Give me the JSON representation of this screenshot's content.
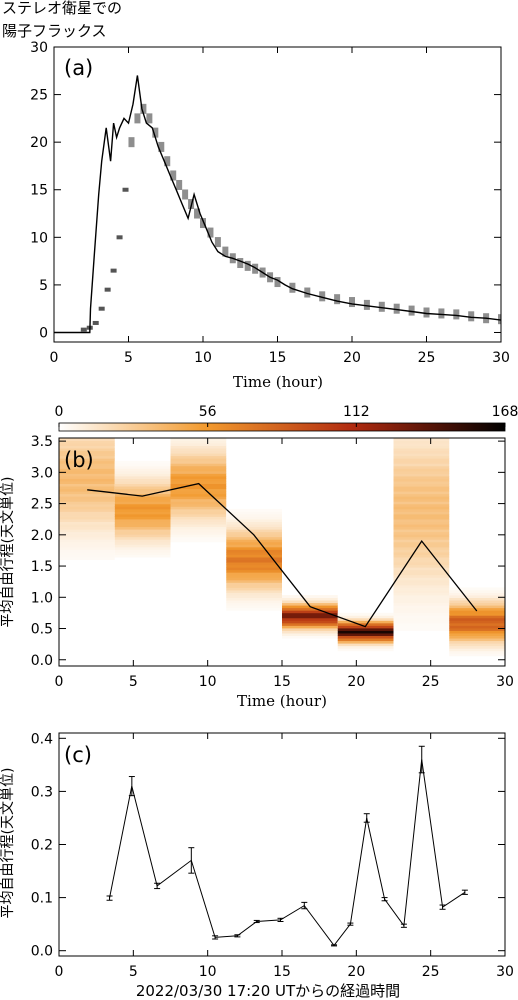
{
  "figure_title": [
    "ステレオ衛星での",
    "陽子フラックス"
  ],
  "chart_data": [
    {
      "panel_label": "(a)",
      "type": "line",
      "xlabel": "Time (hour)",
      "ylabel": "",
      "xlim": [
        0,
        30
      ],
      "ylim": [
        -1,
        30
      ],
      "xticks": [
        0,
        5,
        10,
        15,
        20,
        25,
        30
      ],
      "yticks": [
        0,
        5,
        10,
        15,
        20,
        25,
        30
      ],
      "series": [
        {
          "style": "solid-black",
          "x": [
            0,
            2.4,
            2.45,
            2.7,
            3.0,
            3.2,
            3.5,
            3.8,
            4.0,
            4.2,
            4.4,
            4.7,
            5.0,
            5.3,
            5.6,
            5.9,
            6.2,
            6.6,
            7.0,
            7.4,
            7.8,
            8.2,
            8.6,
            9.0,
            9.4,
            9.8,
            10.2,
            10.6,
            11.0,
            11.5,
            12.0,
            12.5,
            13.0,
            13.5,
            14.0,
            14.5,
            15.0,
            15.5,
            16.0,
            17.0,
            18.0,
            19.0,
            20.0,
            21.0,
            22.0,
            23.0,
            24.0,
            25.0,
            26.0,
            27.0,
            28.0,
            29.0,
            30.0
          ],
          "y": [
            0,
            0,
            2.5,
            8.0,
            14.5,
            18.0,
            21.5,
            18.0,
            22.0,
            20.5,
            21.5,
            22.5,
            22.0,
            24.0,
            27.0,
            23.5,
            22.0,
            21.5,
            19.5,
            18.0,
            16.5,
            15.0,
            13.5,
            12.0,
            14.5,
            12.5,
            11.0,
            9.5,
            8.5,
            8.0,
            7.8,
            7.5,
            7.2,
            6.8,
            6.3,
            5.8,
            5.5,
            5.0,
            4.6,
            4.1,
            3.7,
            3.3,
            3.0,
            2.8,
            2.6,
            2.4,
            2.2,
            2.0,
            1.9,
            1.8,
            1.6,
            1.5,
            1.3
          ]
        },
        {
          "style": "gray-band",
          "x": [
            2.0,
            2.4,
            2.8,
            3.2,
            3.6,
            4.0,
            4.4,
            4.8,
            5.2,
            5.6,
            6.0,
            6.4,
            6.8,
            7.2,
            7.6,
            8.0,
            8.4,
            8.8,
            9.2,
            9.6,
            10.0,
            10.5,
            11.0,
            11.5,
            12.0,
            12.5,
            13.0,
            13.5,
            14.0,
            14.5,
            15.0,
            16.0,
            17.0,
            18.0,
            19.0,
            20.0,
            21.0,
            22.0,
            23.0,
            24.0,
            25.0,
            26.0,
            27.0,
            28.0,
            29.0,
            30.0
          ],
          "y": [
            0.3,
            0.5,
            1.0,
            2.5,
            4.5,
            6.5,
            10.0,
            15.0,
            20.0,
            22.5,
            23.5,
            22.5,
            21.0,
            19.5,
            18.0,
            16.5,
            15.5,
            14.5,
            13.5,
            12.5,
            11.5,
            10.5,
            9.5,
            8.5,
            7.8,
            7.3,
            7.0,
            6.7,
            6.3,
            5.8,
            5.3,
            4.7,
            4.2,
            3.8,
            3.5,
            3.2,
            2.9,
            2.7,
            2.5,
            2.3,
            2.1,
            2.0,
            1.9,
            1.7,
            1.5,
            1.4
          ]
        }
      ]
    },
    {
      "panel_label": "(b)",
      "type": "heatmap",
      "xlabel": "Time (hour)",
      "ylabel": "平均自由行程(天文単位)",
      "xlim": [
        0,
        30
      ],
      "ylim": [
        -0.1,
        3.55
      ],
      "xticks": [
        0,
        5,
        10,
        15,
        20,
        25,
        30
      ],
      "yticks": [
        0.0,
        0.5,
        1.0,
        1.5,
        2.0,
        2.5,
        3.0,
        3.5
      ],
      "colorbar": {
        "min": 0,
        "max": 168,
        "ticks": [
          0,
          56,
          112,
          168
        ]
      },
      "columns": [
        {
          "x0": 0.0,
          "x1": 3.75,
          "center": 2.9,
          "spread": 0.55,
          "peak": 40
        },
        {
          "x0": 3.75,
          "x1": 7.5,
          "center": 2.4,
          "spread": 0.3,
          "peak": 60
        },
        {
          "x0": 7.5,
          "x1": 11.25,
          "center": 2.8,
          "spread": 0.35,
          "peak": 60
        },
        {
          "x0": 11.25,
          "x1": 15.0,
          "center": 1.6,
          "spread": 0.3,
          "peak": 75
        },
        {
          "x0": 15.0,
          "x1": 18.75,
          "center": 0.7,
          "spread": 0.12,
          "peak": 135
        },
        {
          "x0": 18.75,
          "x1": 22.5,
          "center": 0.45,
          "spread": 0.1,
          "peak": 160
        },
        {
          "x0": 22.5,
          "x1": 26.25,
          "center": 2.4,
          "spread": 0.8,
          "peak": 38
        },
        {
          "x0": 26.25,
          "x1": 30.0,
          "center": 0.6,
          "spread": 0.2,
          "peak": 90
        }
      ],
      "line": {
        "x": [
          1.9,
          5.6,
          9.4,
          13.1,
          16.9,
          20.6,
          24.4,
          28.1
        ],
        "y": [
          2.72,
          2.62,
          2.82,
          2.0,
          0.85,
          0.53,
          1.9,
          0.78
        ]
      }
    },
    {
      "panel_label": "(c)",
      "type": "line",
      "xlabel": "2022/03/30 17:20 UTからの経過時間",
      "ylabel": "平均自由行程(天文単位)",
      "xlim": [
        0,
        30
      ],
      "ylim": [
        -0.01,
        0.41
      ],
      "xticks": [
        0,
        5,
        10,
        15,
        20,
        25,
        30
      ],
      "yticks": [
        0.0,
        0.1,
        0.2,
        0.3,
        0.4
      ],
      "x": [
        3.4,
        4.9,
        6.6,
        8.9,
        10.5,
        12.0,
        13.3,
        14.9,
        16.5,
        18.5,
        19.6,
        20.7,
        21.9,
        23.2,
        24.4,
        25.8,
        27.3
      ],
      "values": [
        0.099,
        0.31,
        0.122,
        0.17,
        0.025,
        0.028,
        0.055,
        0.058,
        0.085,
        0.01,
        0.05,
        0.25,
        0.097,
        0.047,
        0.36,
        0.082,
        0.11
      ],
      "errors": [
        0.004,
        0.018,
        0.005,
        0.024,
        0.003,
        0.002,
        0.002,
        0.003,
        0.006,
        0.001,
        0.002,
        0.008,
        0.003,
        0.003,
        0.025,
        0.004,
        0.004
      ]
    }
  ]
}
